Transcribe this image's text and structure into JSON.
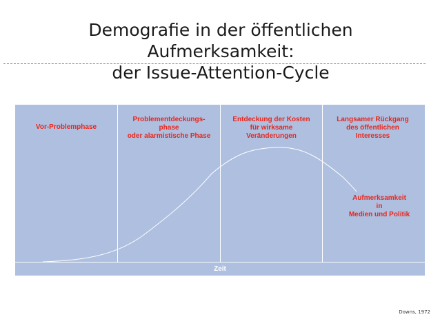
{
  "slide": {
    "title_line1": "Demografie in der öffentlichen Aufmerksamkeit:",
    "title_line2": "der Issue-Attention-Cycle",
    "citation": "Downs, 1972"
  },
  "diagram": {
    "phases": [
      "Vor-Problemphase",
      "Problementdeckungs-\nphase\noder alarmistische Phase",
      "Entdeckung der Kosten\nfür wirksame\nVeränderungen",
      "Langsamer Rückgang\ndes öffentlichen\nInteresses"
    ],
    "curve_label": "Aufmerksamkeit\nin\nMedien und Politik",
    "axis_label": "Zeit",
    "colors": {
      "panel": "#aebfe0",
      "phase_text": "#e8261b",
      "lines": "#ffffff"
    }
  }
}
